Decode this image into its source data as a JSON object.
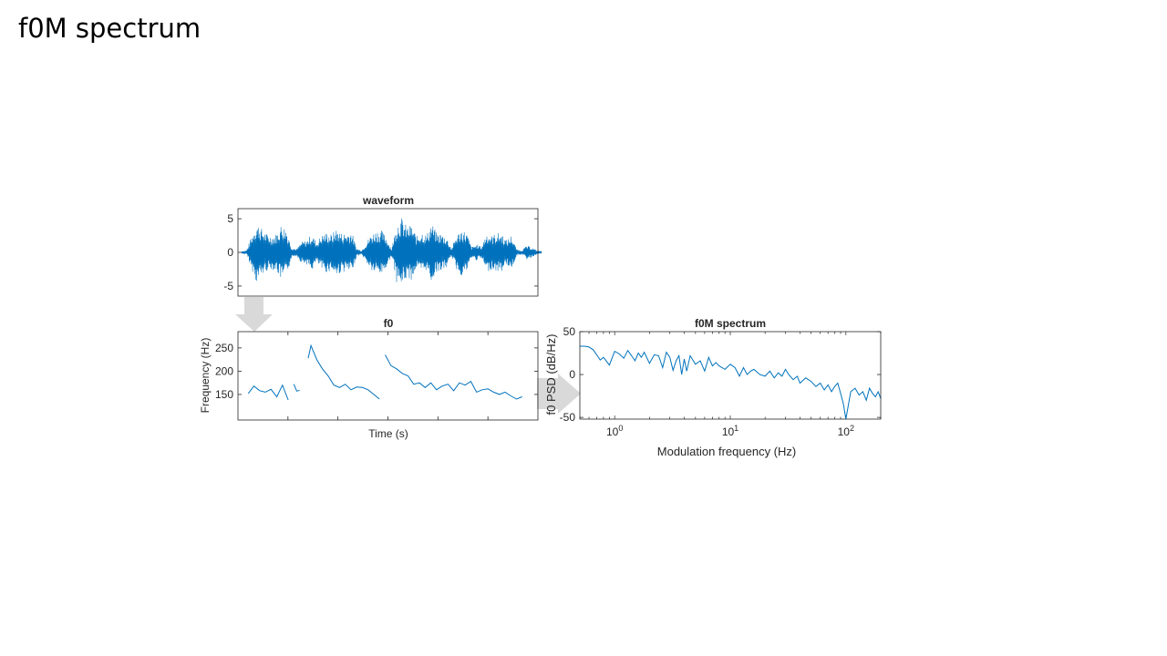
{
  "slide": {
    "title": "f0M spectrum"
  },
  "colors": {
    "series": "#0072bd",
    "axis": "#262626",
    "arrow": "#d9d9d9",
    "background": "#ffffff"
  },
  "chart_data": [
    {
      "type": "line",
      "title": "waveform",
      "xlabel": "",
      "ylabel": "",
      "ylim": [
        -6.5,
        6.5
      ],
      "yticks": [
        5,
        0,
        -5
      ],
      "grid": false,
      "series": [
        {
          "envelope_y": [
            0.2,
            0.3,
            2.5,
            4.5,
            3.6,
            2.8,
            2.5,
            2.8,
            4.3,
            3.5,
            0.8,
            0.5,
            1.6,
            1.8,
            2.8,
            1.5,
            2.6,
            3.0,
            2.7,
            3.6,
            2.9,
            2.9,
            3.2,
            0.6,
            0.3,
            1.6,
            2.8,
            3.3,
            3.3,
            2.3,
            0.5,
            4.4,
            5.2,
            3.9,
            4.1,
            2.4,
            3.2,
            2.6,
            4.5,
            2.9,
            2.8,
            2.3,
            0.6,
            2.6,
            3.5,
            3.0,
            0.8,
            1.2,
            0.9,
            3.0,
            2.5,
            2.9,
            2.9,
            1.8,
            2.6,
            0.5,
            0.3,
            1.0,
            0.8,
            0.3,
            0.2
          ],
          "note_values": []
        }
      ]
    },
    {
      "type": "line",
      "title": "f0",
      "xlabel": "Time (s)",
      "ylabel": "Frequency (Hz)",
      "ylim": [
        95,
        285
      ],
      "yticks": [
        250,
        200,
        150
      ],
      "grid": false,
      "series": [
        {
          "segments": [
            {
              "x": [
                0.02,
                0.04,
                0.06,
                0.08,
                0.1,
                0.12,
                0.14,
                0.16
              ],
              "y": [
                152,
                168,
                158,
                155,
                161,
                145,
                170,
                138
              ]
            },
            {
              "x": [
                0.18,
                0.19,
                0.2
              ],
              "y": [
                172,
                157,
                159
              ]
            },
            {
              "x": [
                0.23,
                0.24,
                0.26,
                0.28,
                0.3,
                0.32,
                0.34,
                0.36,
                0.38,
                0.4,
                0.42,
                0.44,
                0.46,
                0.48
              ],
              "y": [
                228,
                255,
                225,
                205,
                190,
                170,
                165,
                172,
                160,
                166,
                165,
                160,
                150,
                140
              ]
            },
            {
              "x": [
                0.5,
                0.52,
                0.54,
                0.56,
                0.58,
                0.6,
                0.62,
                0.64,
                0.66,
                0.68,
                0.7,
                0.72,
                0.74,
                0.76,
                0.78,
                0.8,
                0.82,
                0.84,
                0.86,
                0.88,
                0.9,
                0.92,
                0.94,
                0.96,
                0.98
              ],
              "y": [
                235,
                212,
                205,
                195,
                190,
                172,
                175,
                165,
                175,
                160,
                168,
                172,
                158,
                175,
                170,
                178,
                155,
                160,
                162,
                155,
                150,
                155,
                147,
                140,
                145
              ]
            }
          ]
        }
      ]
    },
    {
      "type": "line",
      "title": "f0M spectrum",
      "xlabel": "Modulation frequency (Hz)",
      "ylabel": "f0 PSD (dB/Hz)",
      "xscale": "log",
      "xlim": [
        0.5,
        200
      ],
      "ylim": [
        -52,
        50
      ],
      "xtick_labels": [
        "10^0",
        "10^1",
        "10^2"
      ],
      "xticks": [
        1,
        10,
        100
      ],
      "yticks": [
        50,
        0,
        -50
      ],
      "grid": false,
      "series": [
        {
          "x": [
            0.5,
            0.55,
            0.6,
            0.65,
            0.7,
            0.75,
            0.8,
            0.9,
            1.0,
            1.1,
            1.2,
            1.3,
            1.4,
            1.5,
            1.6,
            1.7,
            1.8,
            2.0,
            2.2,
            2.4,
            2.6,
            2.8,
            3.0,
            3.2,
            3.4,
            3.6,
            3.8,
            4.0,
            4.2,
            4.5,
            5.0,
            5.5,
            6.0,
            6.5,
            7.0,
            7.5,
            8.0,
            9.0,
            10,
            11,
            12,
            13,
            14,
            15,
            16,
            18,
            20,
            22,
            24,
            26,
            28,
            30,
            32,
            35,
            38,
            40,
            45,
            50,
            55,
            60,
            65,
            70,
            75,
            80,
            85,
            90,
            95,
            100,
            110,
            120,
            130,
            140,
            150,
            160,
            170,
            180,
            190,
            200
          ],
          "y": [
            33,
            33,
            32,
            29,
            23,
            17,
            20,
            11,
            27,
            24,
            19,
            28,
            22,
            16,
            25,
            20,
            26,
            13,
            23,
            22,
            8,
            26,
            20,
            5,
            16,
            22,
            0,
            18,
            4,
            22,
            12,
            16,
            4,
            20,
            10,
            14,
            10,
            6,
            12,
            8,
            -2,
            8,
            0,
            4,
            6,
            0,
            -2,
            4,
            -4,
            2,
            -2,
            6,
            0,
            -6,
            -2,
            -10,
            -4,
            -8,
            -14,
            -10,
            -18,
            -12,
            -20,
            -14,
            -10,
            -22,
            -34,
            -52,
            -20,
            -16,
            -24,
            -20,
            -30,
            -16,
            -22,
            -26,
            -20,
            -28
          ]
        }
      ]
    }
  ]
}
